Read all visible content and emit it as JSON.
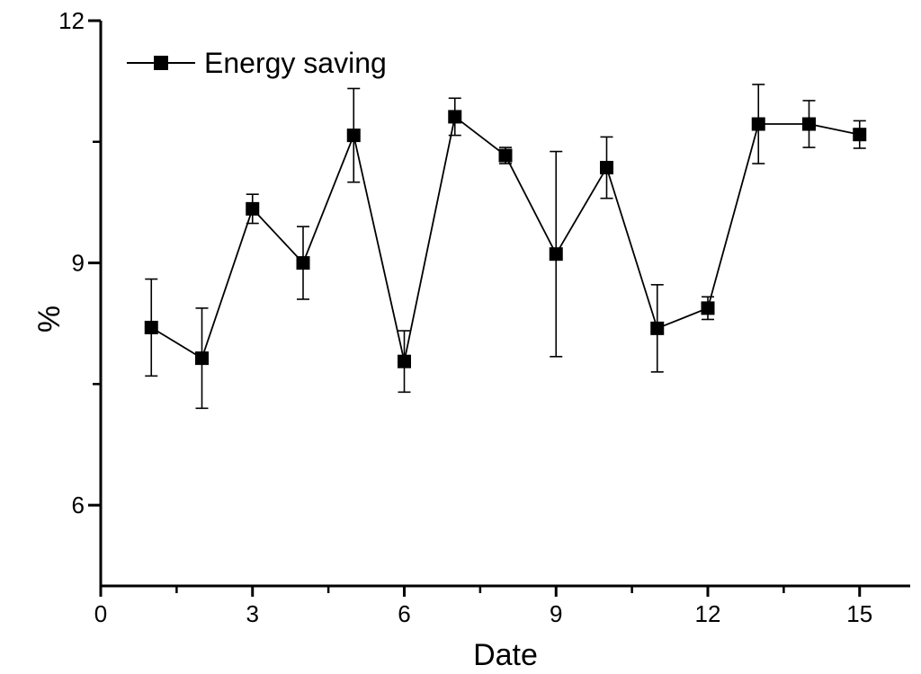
{
  "chart_data": {
    "type": "line",
    "series": [
      {
        "name": "Energy saving",
        "x": [
          1,
          2,
          3,
          4,
          5,
          6,
          7,
          8,
          9,
          10,
          11,
          12,
          13,
          14,
          15
        ],
        "values": [
          8.2,
          7.82,
          9.67,
          9.0,
          10.58,
          7.78,
          10.81,
          10.33,
          9.11,
          10.18,
          8.19,
          8.44,
          10.72,
          10.72,
          10.59
        ],
        "errors": [
          0.6,
          0.62,
          0.18,
          0.45,
          0.58,
          0.38,
          0.23,
          0.1,
          1.27,
          0.38,
          0.54,
          0.14,
          0.49,
          0.29,
          0.17
        ],
        "marker": "filled-square",
        "color": "#000000"
      }
    ],
    "title": "",
    "xlabel": "Date",
    "ylabel": "%",
    "xlim": [
      0,
      16
    ],
    "ylim": [
      5,
      12
    ],
    "xticks": [
      0,
      3,
      6,
      9,
      12,
      15
    ],
    "yticks": [
      6,
      9,
      12
    ],
    "xticks_minor": [
      1.5,
      4.5,
      7.5,
      10.5,
      13.5
    ],
    "yticks_minor": [
      7.5,
      10.5
    ],
    "grid": false,
    "legend_position": "top-left",
    "background_color": "#ffffff",
    "axis_color": "#000000"
  }
}
